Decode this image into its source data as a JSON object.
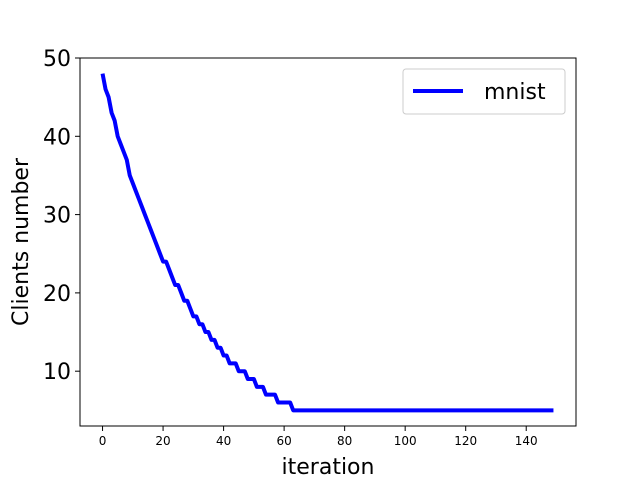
{
  "chart_data": {
    "type": "line",
    "title": "",
    "xlabel": "iteration",
    "ylabel": "Clients number",
    "xlim": [
      -7.45,
      156.45
    ],
    "ylim": [
      3,
      50
    ],
    "xticks": [
      0,
      20,
      40,
      60,
      80,
      100,
      120,
      140
    ],
    "yticks": [
      10,
      20,
      30,
      40,
      50
    ],
    "grid": false,
    "legend_position": "top-right",
    "series": [
      {
        "name": "mnist",
        "color": "#0000ff",
        "x": [
          0,
          1,
          2,
          3,
          4,
          5,
          6,
          7,
          8,
          9,
          10,
          11,
          12,
          13,
          14,
          15,
          16,
          17,
          18,
          19,
          20,
          21,
          22,
          23,
          24,
          25,
          26,
          27,
          28,
          29,
          30,
          31,
          32,
          33,
          34,
          35,
          36,
          37,
          38,
          39,
          40,
          41,
          42,
          43,
          44,
          45,
          46,
          47,
          48,
          49,
          50,
          51,
          52,
          53,
          54,
          55,
          56,
          57,
          58,
          59,
          60,
          61,
          62,
          63,
          64,
          65,
          149
        ],
        "y": [
          48,
          46,
          45,
          43,
          42,
          40,
          39,
          38,
          37,
          35,
          34,
          33,
          32,
          31,
          30,
          29,
          28,
          27,
          26,
          25,
          24,
          24,
          23,
          22,
          21,
          21,
          20,
          19,
          19,
          18,
          17,
          17,
          16,
          16,
          15,
          15,
          14,
          14,
          13,
          13,
          12,
          12,
          11,
          11,
          11,
          10,
          10,
          10,
          9,
          9,
          9,
          8,
          8,
          8,
          7,
          7,
          7,
          7,
          6,
          6,
          6,
          6,
          6,
          5,
          5,
          5,
          5
        ]
      }
    ]
  }
}
